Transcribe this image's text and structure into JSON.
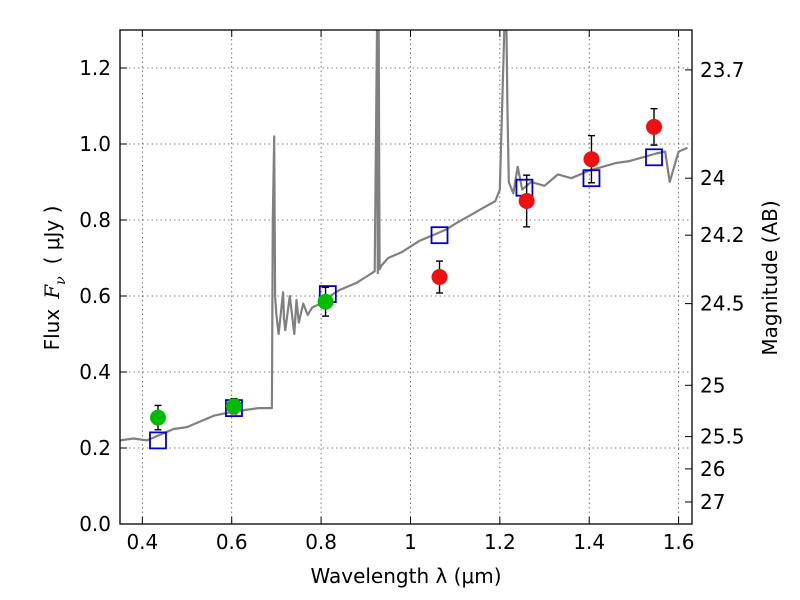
{
  "chart_data": {
    "type": "scatter",
    "xlabel": "Wavelength  λ (μm)",
    "ylabel_text": "Flux",
    "ylabel_symbol": "F",
    "ylabel_subscript": "ν",
    "ylabel_unit": "( μJy )",
    "ylabel_right": "Magnitude (AB)",
    "xlim": [
      0.35,
      1.63
    ],
    "ylim": [
      0.0,
      1.3
    ],
    "grid": true,
    "x_ticks": [
      0.4,
      0.6,
      0.8,
      1.0,
      1.2,
      1.4,
      1.6
    ],
    "x_tick_labels": [
      "0.4",
      "0.6",
      "0.8",
      "1",
      "1.2",
      "1.4",
      "1.6"
    ],
    "y_ticks": [
      0.0,
      0.2,
      0.4,
      0.6,
      0.8,
      1.0,
      1.2
    ],
    "y_tick_labels": [
      "0.0",
      "0.2",
      "0.4",
      "0.6",
      "0.8",
      "1.0",
      "1.2"
    ],
    "right_axis_ticks": [
      {
        "flux": 1.195,
        "label": "23.7"
      },
      {
        "flux": 0.91,
        "label": "24"
      },
      {
        "flux": 0.76,
        "label": "24.2"
      },
      {
        "flux": 0.58,
        "label": "24.5"
      },
      {
        "flux": 0.365,
        "label": "25"
      },
      {
        "flux": 0.23,
        "label": "25.5"
      },
      {
        "flux": 0.145,
        "label": "26"
      },
      {
        "flux": 0.058,
        "label": "27"
      }
    ],
    "colors": {
      "spectrum": "#808080",
      "model_box": "#0000cc",
      "hst_point": "#00bb00",
      "ir_point": "#ee1111",
      "errorbar": "#000000",
      "grid": "#555555"
    },
    "series": [
      {
        "name": "model spectrum",
        "kind": "line",
        "x": [
          0.35,
          0.38,
          0.41,
          0.44,
          0.47,
          0.5,
          0.53,
          0.56,
          0.6,
          0.63,
          0.66,
          0.69,
          0.692,
          0.695,
          0.697,
          0.7,
          0.705,
          0.715,
          0.717,
          0.72,
          0.73,
          0.74,
          0.745,
          0.75,
          0.76,
          0.77,
          0.78,
          0.8,
          0.82,
          0.84,
          0.86,
          0.88,
          0.9,
          0.92,
          0.925,
          0.927,
          0.929,
          0.931,
          0.935,
          0.95,
          0.98,
          1.0,
          1.02,
          1.05,
          1.08,
          1.1,
          1.13,
          1.16,
          1.19,
          1.2,
          1.21,
          1.215,
          1.217,
          1.22,
          1.23,
          1.24,
          1.25,
          1.27,
          1.3,
          1.33,
          1.36,
          1.4,
          1.43,
          1.46,
          1.49,
          1.52,
          1.55,
          1.57,
          1.58,
          1.6,
          1.62
        ],
        "y": [
          0.22,
          0.225,
          0.22,
          0.235,
          0.25,
          0.255,
          0.27,
          0.285,
          0.295,
          0.3,
          0.305,
          0.305,
          0.8,
          1.02,
          0.6,
          0.55,
          0.5,
          0.61,
          0.54,
          0.51,
          0.6,
          0.5,
          0.59,
          0.53,
          0.58,
          0.55,
          0.57,
          0.58,
          0.6,
          0.615,
          0.625,
          0.635,
          0.65,
          0.665,
          1.3,
          0.66,
          1.3,
          0.67,
          0.68,
          0.7,
          0.715,
          0.73,
          0.745,
          0.76,
          0.775,
          0.79,
          0.81,
          0.83,
          0.85,
          0.88,
          1.3,
          1.3,
          1.1,
          0.9,
          0.87,
          0.94,
          0.88,
          0.9,
          0.89,
          0.92,
          0.91,
          0.93,
          0.94,
          0.95,
          0.955,
          0.965,
          0.975,
          0.98,
          0.9,
          0.98,
          0.99
        ]
      },
      {
        "name": "model photometry",
        "kind": "open-square",
        "x": [
          0.435,
          0.605,
          0.815,
          1.065,
          1.255,
          1.405,
          1.545
        ],
        "y": [
          0.22,
          0.305,
          0.605,
          0.76,
          0.885,
          0.91,
          0.965
        ]
      },
      {
        "name": "HST photometry",
        "kind": "filled-circle",
        "x": [
          0.435,
          0.605,
          0.81
        ],
        "y": [
          0.28,
          0.31,
          0.585
        ],
        "yerr": [
          0.032,
          0.02,
          0.038
        ]
      },
      {
        "name": "IR photometry",
        "kind": "filled-circle",
        "x": [
          1.065,
          1.26,
          1.405,
          1.545
        ],
        "y": [
          0.65,
          0.85,
          0.96,
          1.045
        ],
        "yerr": [
          0.042,
          0.068,
          0.062,
          0.048
        ]
      }
    ]
  }
}
